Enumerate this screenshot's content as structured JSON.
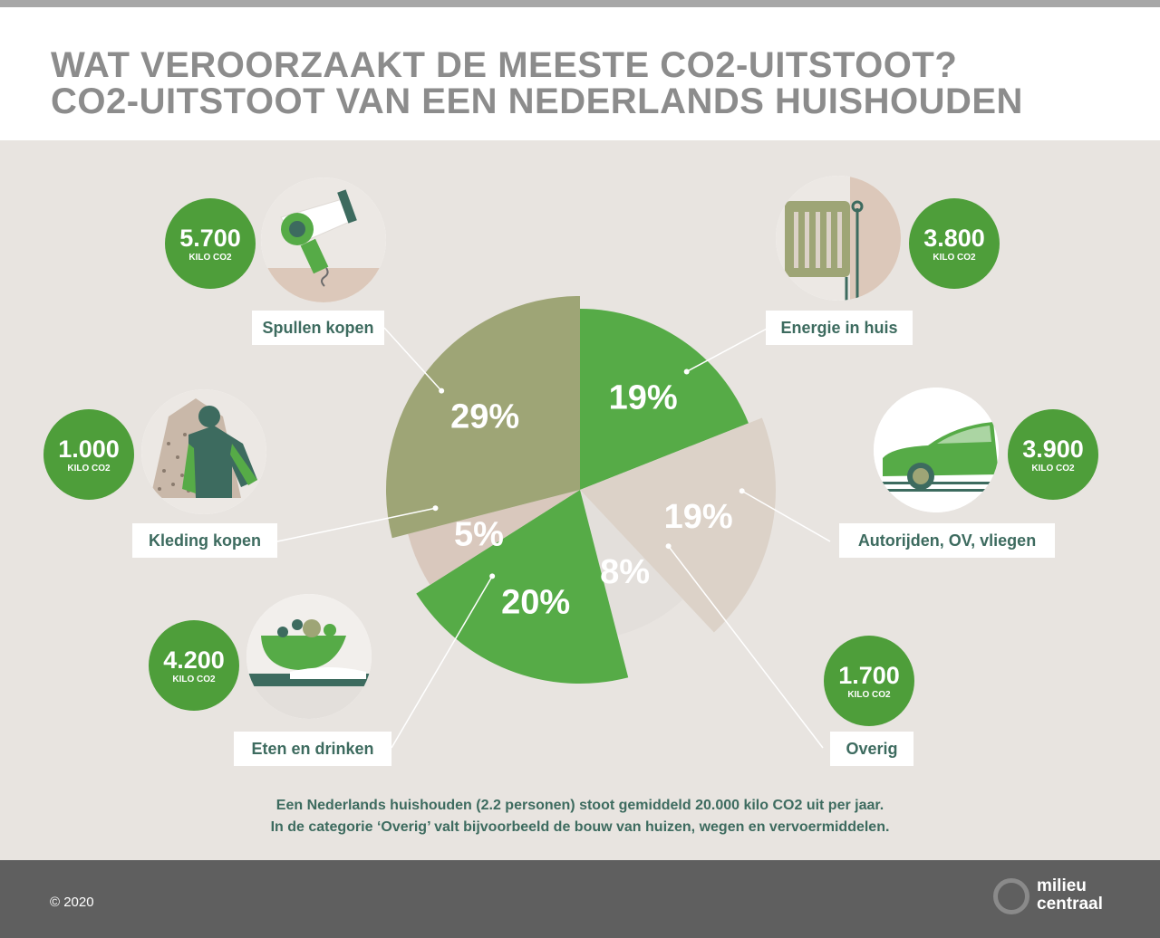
{
  "title": {
    "line1": "WAT VEROORZAAKT DE MEESTE CO2-UITSTOOT?",
    "line2": "CO2-UITSTOOT VAN EEN NEDERLANDS HUISHOUDEN"
  },
  "colors": {
    "green": "#4e9e3a",
    "bright_green": "#56ab47",
    "olive": "#9ea576",
    "beige": "#dcd2c8",
    "light_beige": "#e3dfdb",
    "pale_beige": "#d9c8bd",
    "dark_teal": "#3d6b5f",
    "background": "#e8e4e0"
  },
  "chart_data": {
    "type": "pie",
    "title": "CO2-UITSTOOT VAN EEN NEDERLANDS HUISHOUDEN",
    "slices": [
      {
        "category": "Energie in huis",
        "percent": 19,
        "label": "19%",
        "kilo": "3.800",
        "unit": "KILO CO2",
        "color": "#56ab47"
      },
      {
        "category": "Autorijden, OV, vliegen",
        "percent": 19,
        "label": "19%",
        "kilo": "3.900",
        "unit": "KILO CO2",
        "color": "#dcd2c8"
      },
      {
        "category": "Overig",
        "percent": 8,
        "label": "8%",
        "kilo": "1.700",
        "unit": "KILO CO2",
        "color": "#e3dfdb"
      },
      {
        "category": "Eten en drinken",
        "percent": 20,
        "label": "20%",
        "kilo": "4.200",
        "unit": "KILO CO2",
        "color": "#56ab47"
      },
      {
        "category": "Kleding kopen",
        "percent": 5,
        "label": "5%",
        "kilo": "1.000",
        "unit": "KILO CO2",
        "color": "#d9c8bd"
      },
      {
        "category": "Spullen kopen",
        "percent": 29,
        "label": "29%",
        "kilo": "5.700",
        "unit": "KILO CO2",
        "color": "#9ea576"
      }
    ]
  },
  "icons": {
    "spullen": "hairdryer-icon",
    "energie": "radiator-icon",
    "kleding": "clothing-icon",
    "auto": "car-icon",
    "eten": "salad-bowl-icon"
  },
  "note": {
    "line1": "Een Nederlands huishouden (2.2 personen) stoot gemiddeld 20.000 kilo CO2 uit per jaar.",
    "line2": "In de categorie ‘Overig’ valt bijvoorbeeld de bouw van huizen, wegen en vervoermiddelen."
  },
  "footer": {
    "copyright": "© 2020",
    "logo_line1": "milieu",
    "logo_line2": "centraal"
  }
}
